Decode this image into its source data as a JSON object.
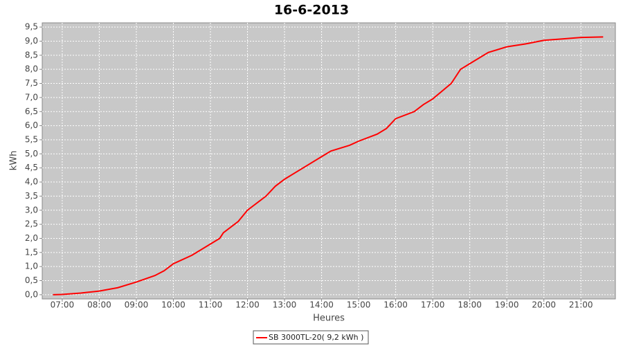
{
  "chart_data": {
    "type": "line",
    "title": "16-6-2013",
    "x_label": "Heures",
    "y_label": "kWh",
    "x": [
      6.75,
      7.0,
      7.5,
      8.0,
      8.5,
      9.0,
      9.5,
      9.75,
      10.0,
      10.5,
      11.0,
      11.25,
      11.35,
      11.75,
      12.0,
      12.5,
      12.75,
      13.0,
      13.5,
      14.0,
      14.25,
      14.75,
      15.0,
      15.5,
      15.75,
      16.0,
      16.5,
      16.75,
      17.0,
      17.5,
      17.75,
      18.0,
      18.5,
      19.0,
      19.5,
      20.0,
      20.5,
      21.0,
      21.6
    ],
    "series": [
      {
        "name": "SB 3000TL-20( 9,2 kWh )",
        "color": "#ff0000",
        "values": [
          0,
          0.01,
          0.06,
          0.13,
          0.25,
          0.45,
          0.68,
          0.85,
          1.1,
          1.4,
          1.8,
          2.0,
          2.2,
          2.6,
          3.0,
          3.5,
          3.85,
          4.1,
          4.5,
          4.9,
          5.1,
          5.3,
          5.45,
          5.7,
          5.9,
          6.25,
          6.5,
          6.75,
          6.95,
          7.5,
          8.0,
          8.2,
          8.6,
          8.8,
          8.9,
          9.03,
          9.08,
          9.13,
          9.15
        ]
      }
    ],
    "xlim": [
      6.46,
      21.93
    ],
    "xticks": [
      {
        "value": 7,
        "label": "07:00"
      },
      {
        "value": 8,
        "label": "08:00"
      },
      {
        "value": 9,
        "label": "09:00"
      },
      {
        "value": 10,
        "label": "10:00"
      },
      {
        "value": 11,
        "label": "11:00"
      },
      {
        "value": 12,
        "label": "12:00"
      },
      {
        "value": 13,
        "label": "13:00"
      },
      {
        "value": 14,
        "label": "14:00"
      },
      {
        "value": 15,
        "label": "15:00"
      },
      {
        "value": 16,
        "label": "16:00"
      },
      {
        "value": 17,
        "label": "17:00"
      },
      {
        "value": 18,
        "label": "18:00"
      },
      {
        "value": 19,
        "label": "19:00"
      },
      {
        "value": 20,
        "label": "20:00"
      },
      {
        "value": 21,
        "label": "21:00"
      }
    ],
    "ylim": [
      -0.15,
      9.65
    ],
    "yticks": [
      {
        "value": 0,
        "label": "0,0"
      },
      {
        "value": 0.5,
        "label": "0,5"
      },
      {
        "value": 1,
        "label": "1,0"
      },
      {
        "value": 1.5,
        "label": "1,5"
      },
      {
        "value": 2,
        "label": "2,0"
      },
      {
        "value": 2.5,
        "label": "2,5"
      },
      {
        "value": 3,
        "label": "3,0"
      },
      {
        "value": 3.5,
        "label": "3,5"
      },
      {
        "value": 4,
        "label": "4,0"
      },
      {
        "value": 4.5,
        "label": "4,5"
      },
      {
        "value": 5,
        "label": "5,0"
      },
      {
        "value": 5.5,
        "label": "5,5"
      },
      {
        "value": 6,
        "label": "6,0"
      },
      {
        "value": 6.5,
        "label": "6,5"
      },
      {
        "value": 7,
        "label": "7,0"
      },
      {
        "value": 7.5,
        "label": "7,5"
      },
      {
        "value": 8,
        "label": "8,0"
      },
      {
        "value": 8.5,
        "label": "8,5"
      },
      {
        "value": 9,
        "label": "9,0"
      },
      {
        "value": 9.5,
        "label": "9,5"
      }
    ],
    "grid": true
  }
}
